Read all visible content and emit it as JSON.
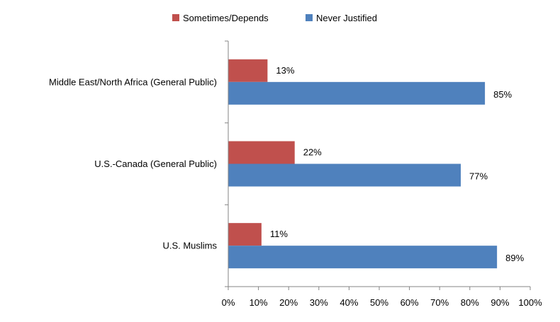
{
  "chart_data": {
    "type": "bar",
    "orientation": "horizontal",
    "categories": [
      "Middle East/North Africa (General Public)",
      "U.S.-Canada (General Public)",
      "U.S. Muslims"
    ],
    "series": [
      {
        "name": "Sometimes/Depends",
        "values": [
          13,
          22,
          11
        ],
        "color": "#c0504d"
      },
      {
        "name": "Never Justified",
        "values": [
          85,
          77,
          89
        ],
        "color": "#4f81bd"
      }
    ],
    "data_labels": [
      [
        "13%",
        "22%",
        "11%"
      ],
      [
        "85%",
        "77%",
        "89%"
      ]
    ],
    "xlim": [
      0,
      100
    ],
    "x_ticks": [
      0,
      10,
      20,
      30,
      40,
      50,
      60,
      70,
      80,
      90,
      100
    ],
    "x_tick_labels": [
      "0%",
      "10%",
      "20%",
      "30%",
      "40%",
      "50%",
      "60%",
      "70%",
      "80%",
      "90%",
      "100%"
    ],
    "legend_position": "top",
    "grid": false
  }
}
